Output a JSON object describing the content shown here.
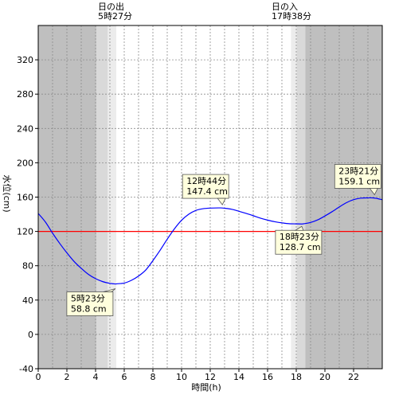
{
  "chart_data": {
    "type": "line",
    "xlabel": "時間(h)",
    "ylabel": "水位(cm)",
    "xlim": [
      0,
      24
    ],
    "ylim": [
      -40,
      360
    ],
    "x_ticks": [
      0,
      2,
      4,
      6,
      8,
      10,
      12,
      14,
      16,
      18,
      20,
      22
    ],
    "y_ticks": [
      -40,
      0,
      40,
      80,
      120,
      160,
      200,
      240,
      280,
      320
    ],
    "reference_line": {
      "value": 120,
      "color": "#ff0000"
    },
    "sunrise": {
      "label": "日の出",
      "time": "5時27分",
      "hour": 5.45
    },
    "sunset": {
      "label": "日の入",
      "time": "17時38分",
      "hour": 17.633
    },
    "series": [
      {
        "color": "#0000ff",
        "x": [
          0,
          0.5,
          1,
          1.5,
          2,
          2.5,
          3,
          3.5,
          4,
          4.5,
          5,
          5.383,
          5.5,
          6,
          6.5,
          7,
          7.5,
          8,
          8.5,
          9,
          9.5,
          10,
          10.5,
          11,
          11.5,
          12,
          12.733,
          13,
          13.5,
          14,
          14.5,
          15,
          15.5,
          16,
          16.5,
          17,
          17.5,
          18,
          18.383,
          18.5,
          19,
          19.5,
          20,
          20.5,
          21,
          21.5,
          22,
          22.5,
          23,
          23.35,
          23.6,
          24
        ],
        "y": [
          141,
          131,
          118,
          106,
          95,
          85,
          77,
          70,
          65,
          61.5,
          59.5,
          58.8,
          59,
          59.8,
          63,
          68,
          75,
          86,
          98,
          111,
          123,
          133,
          140,
          144.5,
          146.5,
          147.2,
          147.4,
          147,
          145.8,
          143.5,
          141,
          138.3,
          135.5,
          133.2,
          131.3,
          130,
          129,
          128.8,
          128.7,
          128.9,
          130.5,
          133.5,
          138,
          143,
          148.5,
          153.5,
          157,
          158.8,
          159.1,
          159.1,
          158.5,
          157
        ]
      }
    ],
    "annotations": [
      {
        "time": "5時23分",
        "value": "58.8 cm",
        "hour": 5.383,
        "level": 58.8
      },
      {
        "time": "12時44分",
        "value": "147.4 cm",
        "hour": 12.733,
        "level": 147.4
      },
      {
        "time": "18時23分",
        "value": "128.7 cm",
        "hour": 18.383,
        "level": 128.7
      },
      {
        "time": "23時21分",
        "value": "159.1 cm",
        "hour": 23.35,
        "level": 159.1
      }
    ],
    "grid": true
  }
}
